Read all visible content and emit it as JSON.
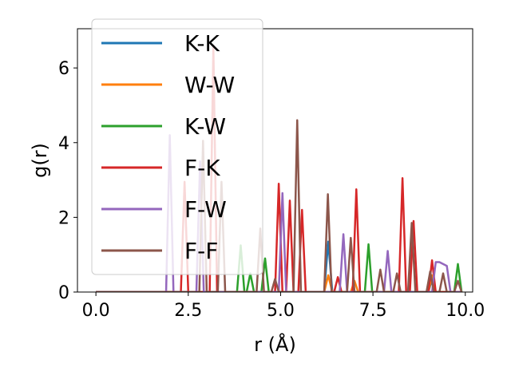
{
  "chart_data": {
    "type": "line",
    "title": "",
    "xlabel": "r (Å)",
    "ylabel": "g(r)",
    "xlim": [
      -0.5,
      10.2
    ],
    "ylim": [
      0,
      7.05
    ],
    "xticks": [
      0.0,
      2.5,
      5.0,
      7.5,
      10.0
    ],
    "xtick_labels": [
      "0.0",
      "2.5",
      "5.0",
      "7.5",
      "10.0"
    ],
    "yticks": [
      0,
      2,
      4,
      6
    ],
    "ytick_labels": [
      "0",
      "2",
      "4",
      "6"
    ],
    "grid": false,
    "legend_position": "upper-left",
    "series": [
      {
        "name": "K-K",
        "color": "#1f77b4",
        "x": [
          0,
          6.18,
          6.29,
          6.4,
          9.0,
          9.1,
          9.2,
          9.9
        ],
        "y": [
          0,
          0,
          1.35,
          0,
          0,
          0.35,
          0,
          0
        ]
      },
      {
        "name": "W-W",
        "color": "#ff7f0e",
        "x": [
          0,
          6.18,
          6.29,
          6.4,
          6.9,
          7.0,
          7.1,
          9.0,
          9.1,
          9.2,
          9.9
        ],
        "y": [
          0,
          0,
          0.45,
          0,
          0,
          0.3,
          0,
          0,
          0.45,
          0,
          0
        ]
      },
      {
        "name": "K-W",
        "color": "#2ca02c",
        "x": [
          0,
          3.82,
          3.92,
          4.02,
          4.08,
          4.18,
          4.28,
          4.48,
          4.58,
          4.68,
          7.28,
          7.38,
          7.48,
          9.7,
          9.8,
          9.9
        ],
        "y": [
          0,
          0,
          1.25,
          0,
          0,
          0.5,
          0,
          0,
          0.9,
          0,
          0,
          1.28,
          0,
          0,
          0.75,
          0
        ]
      },
      {
        "name": "F-K",
        "color": "#d62728",
        "x": [
          0,
          2.3,
          2.4,
          2.5,
          3.08,
          3.18,
          3.28,
          4.85,
          4.95,
          5.05,
          5.15,
          5.25,
          5.35,
          5.48,
          5.58,
          5.68,
          6.45,
          6.55,
          6.65,
          6.95,
          7.05,
          7.15,
          8.2,
          8.3,
          8.4,
          8.5,
          8.6,
          8.7,
          9.0,
          9.1,
          9.2,
          9.9
        ],
        "y": [
          0,
          0,
          2.95,
          0,
          0,
          6.6,
          0,
          0,
          2.9,
          0,
          0,
          2.45,
          0,
          0,
          2.2,
          0,
          0,
          0.4,
          0,
          0,
          2.75,
          0,
          0,
          3.05,
          0,
          0,
          1.9,
          0,
          0,
          0.85,
          0,
          0
        ]
      },
      {
        "name": "F-W",
        "color": "#9467bd",
        "x": [
          0,
          1.9,
          2.0,
          2.1,
          2.72,
          2.82,
          2.92,
          4.95,
          5.05,
          5.15,
          6.6,
          6.7,
          6.8,
          7.8,
          7.9,
          8.0,
          9.1,
          9.2,
          9.3,
          9.4,
          9.5,
          9.6,
          9.9
        ],
        "y": [
          0,
          0,
          4.2,
          0,
          0,
          3.5,
          0,
          0,
          2.65,
          0,
          0,
          1.55,
          0,
          0,
          1.1,
          0,
          0,
          0.8,
          0.8,
          0.75,
          0.7,
          0,
          0
        ]
      },
      {
        "name": "F-F",
        "color": "#8c564b",
        "x": [
          0,
          2.8,
          2.9,
          3.0,
          3.3,
          3.4,
          3.5,
          4.35,
          4.45,
          4.55,
          4.75,
          4.85,
          4.95,
          5.35,
          5.45,
          5.55,
          6.18,
          6.28,
          6.38,
          6.8,
          6.9,
          7.0,
          7.6,
          7.7,
          7.8,
          8.05,
          8.15,
          8.25,
          8.45,
          8.55,
          8.65,
          8.95,
          9.05,
          9.15,
          9.3,
          9.4,
          9.5,
          9.7,
          9.8,
          9.9
        ],
        "y": [
          0,
          0,
          4.05,
          0,
          0,
          2.95,
          0,
          0,
          1.7,
          0,
          0,
          0.35,
          0,
          0,
          4.6,
          0,
          0,
          2.62,
          0,
          0,
          1.45,
          0,
          0,
          0.6,
          0,
          0,
          0.5,
          0,
          0,
          1.85,
          0,
          0,
          0.55,
          0,
          0,
          0.5,
          0,
          0,
          0.3,
          0
        ]
      }
    ]
  }
}
